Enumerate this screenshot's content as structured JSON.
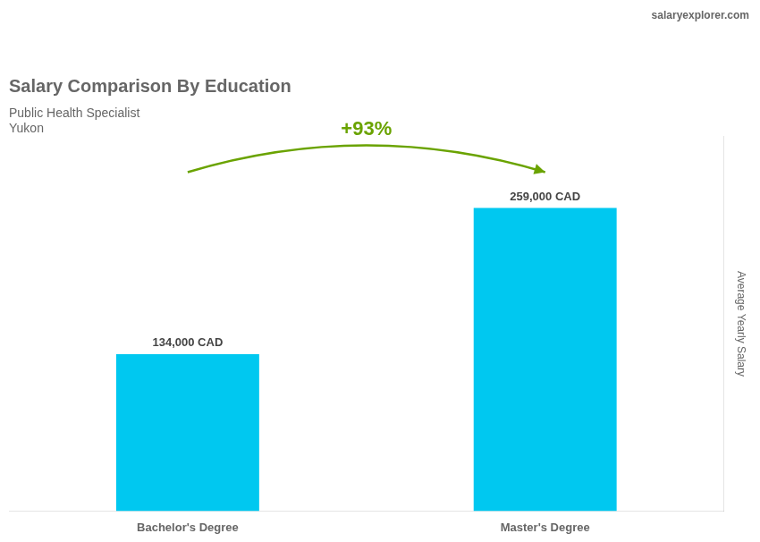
{
  "chart_data": {
    "type": "bar",
    "title": "Salary Comparison By Education",
    "subtitle": [
      "Public Health Specialist",
      "Yukon"
    ],
    "ylabel": "Average Yearly Salary",
    "categories": [
      "Bachelor's Degree",
      "Master's Degree"
    ],
    "values": [
      134000,
      259000
    ],
    "value_labels": [
      "134,000 CAD",
      "259,000 CAD"
    ],
    "data_labels": true,
    "color": "#00c8f0",
    "ylim": [
      0,
      320000
    ],
    "grid": false,
    "tick_labels": "x",
    "annotations": [
      "+93%",
      "salaryexplorer.com"
    ]
  }
}
